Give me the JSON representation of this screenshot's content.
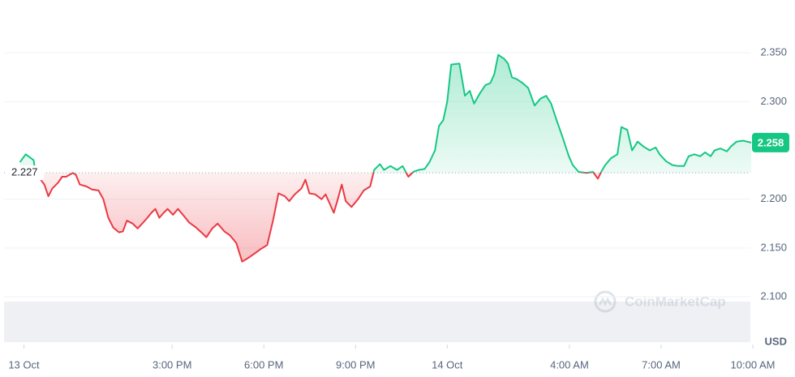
{
  "chart_data": {
    "type": "line",
    "x": [
      10.02,
      10.21,
      10.47,
      10.53,
      10.82,
      10.95,
      11.08,
      11.27,
      11.4,
      11.53,
      11.75,
      11.85,
      11.98,
      12.2,
      12.38,
      12.59,
      12.75,
      12.91,
      13.07,
      13.26,
      13.39,
      13.52,
      13.71,
      13.87,
      14.05,
      14.19,
      14.32,
      14.45,
      14.58,
      14.72,
      14.85,
      15.03,
      15.19,
      15.38,
      15.56,
      15.78,
      15.99,
      16.12,
      16.31,
      16.49,
      16.71,
      16.89,
      17.1,
      17.29,
      17.5,
      17.77,
      17.9,
      18.11,
      18.3,
      18.48,
      18.69,
      18.83,
      19.01,
      19.23,
      19.36,
      19.49,
      19.68,
      19.89,
      20.02,
      20.15,
      20.29,
      20.42,
      20.55,
      20.68,
      20.87,
      21.08,
      21.27,
      21.48,
      21.61,
      21.8,
      21.93,
      22.14,
      22.36,
      22.54,
      22.73,
      22.89,
      23.07,
      23.26,
      23.42,
      23.6,
      23.73,
      23.87,
      24,
      24.13,
      24.4,
      24.58,
      24.74,
      24.88,
      25.06,
      25.25,
      25.41,
      25.54,
      25.67,
      25.86,
      25.99,
      26.12,
      26.28,
      26.47,
      26.65,
      26.86,
      27.05,
      27.24,
      27.4,
      27.58,
      27.77,
      27.98,
      28.11,
      28.3,
      28.56,
      28.77,
      28.93,
      29.04,
      29.17,
      29.36,
      29.57,
      29.7,
      29.89,
      30.05,
      30.23,
      30.42,
      30.63,
      30.82,
      30.95,
      31.16,
      31.37,
      31.56,
      31.75,
      31.9,
      32.09,
      32.28,
      32.44,
      32.62,
      32.75,
      32.94,
      33.15,
      33.28,
      33.47,
      33.68,
      33.95
    ],
    "values": [
      2.238,
      2.246,
      2.24,
      2.227,
      2.215,
      2.203,
      2.211,
      2.217,
      2.223,
      2.223,
      2.227,
      2.225,
      2.215,
      2.213,
      2.21,
      2.209,
      2.2,
      2.181,
      2.171,
      2.166,
      2.167,
      2.178,
      2.175,
      2.17,
      2.176,
      2.181,
      2.186,
      2.19,
      2.181,
      2.186,
      2.19,
      2.184,
      2.19,
      2.183,
      2.176,
      2.171,
      2.165,
      2.161,
      2.17,
      2.175,
      2.167,
      2.163,
      2.155,
      2.136,
      2.14,
      2.146,
      2.149,
      2.153,
      2.178,
      2.206,
      2.203,
      2.198,
      2.205,
      2.211,
      2.22,
      2.206,
      2.205,
      2.2,
      2.205,
      2.196,
      2.186,
      2.2,
      2.215,
      2.198,
      2.192,
      2.2,
      2.209,
      2.213,
      2.23,
      2.236,
      2.23,
      2.234,
      2.23,
      2.234,
      2.223,
      2.228,
      2.23,
      2.231,
      2.238,
      2.25,
      2.275,
      2.281,
      2.3,
      2.338,
      2.339,
      2.306,
      2.311,
      2.298,
      2.308,
      2.317,
      2.319,
      2.328,
      2.348,
      2.344,
      2.339,
      2.325,
      2.323,
      2.319,
      2.314,
      2.296,
      2.303,
      2.306,
      2.298,
      2.281,
      2.264,
      2.244,
      2.235,
      2.228,
      2.227,
      2.228,
      2.221,
      2.228,
      2.235,
      2.242,
      2.246,
      2.274,
      2.271,
      2.25,
      2.259,
      2.254,
      2.25,
      2.253,
      2.246,
      2.239,
      2.235,
      2.234,
      2.234,
      2.244,
      2.246,
      2.244,
      2.248,
      2.244,
      2.25,
      2.252,
      2.249,
      2.254,
      2.259,
      2.26,
      2.258
    ],
    "baseline": 2.227,
    "last_price": 2.258,
    "xlim": [
      9.5,
      34.0
    ],
    "xticks": [
      {
        "value": 10.15,
        "label": "13 Oct"
      },
      {
        "value": 15,
        "label": "3:00 PM"
      },
      {
        "value": 18,
        "label": "6:00 PM"
      },
      {
        "value": 21,
        "label": "9:00 PM"
      },
      {
        "value": 24,
        "label": "14 Oct"
      },
      {
        "value": 28,
        "label": "4:00 AM"
      },
      {
        "value": 31,
        "label": "7:00 AM"
      },
      {
        "value": 34,
        "label": "10:00 AM"
      }
    ],
    "ylim": [
      2.051,
      2.4
    ],
    "yticks": [
      {
        "value": 2.1,
        "label": "2.100"
      },
      {
        "value": 2.15,
        "label": "2.150"
      },
      {
        "value": 2.2,
        "label": "2.200"
      },
      {
        "value": 2.3,
        "label": "2.300"
      },
      {
        "value": 2.35,
        "label": "2.350"
      }
    ],
    "y_unit": "USD",
    "up_color": "#16c784",
    "down_color": "#ea3943",
    "grid": true,
    "watermark": "CoinMarketCap"
  }
}
